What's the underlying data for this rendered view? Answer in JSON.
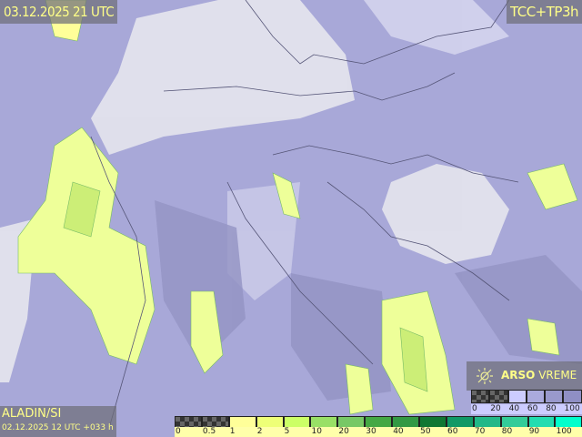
{
  "header": {
    "valid_time": "03.12.2025 21 UTC",
    "product": "TCC+TP3h"
  },
  "model": {
    "name": "ALADIN/SI",
    "run": "02.12.2025 12 UTC +033 h"
  },
  "brand": {
    "bold": "ARSO",
    "rest": " VREME",
    "icon": "weather-logo-icon"
  },
  "precip_legend": {
    "colors": [
      "checker",
      "checker",
      "#ffff99",
      "#eeff77",
      "#ccff66",
      "#99e066",
      "#77c866",
      "#44a844",
      "#339944",
      "#117733",
      "#119966",
      "#22b888",
      "#33cc99",
      "#22ddb0",
      "#00ffcc"
    ],
    "ticks": [
      "0",
      "0.5",
      "1",
      "2",
      "5",
      "10",
      "20",
      "30",
      "40",
      "50",
      "60",
      "70",
      "80",
      "90",
      "100"
    ]
  },
  "cloud_legend": {
    "colors": [
      "checker",
      "checker",
      "#ccccff",
      "#aaaadd",
      "#9999cc",
      "#8f8fc4"
    ],
    "ticks": [
      "0",
      "20",
      "40",
      "60",
      "80",
      "100"
    ]
  }
}
